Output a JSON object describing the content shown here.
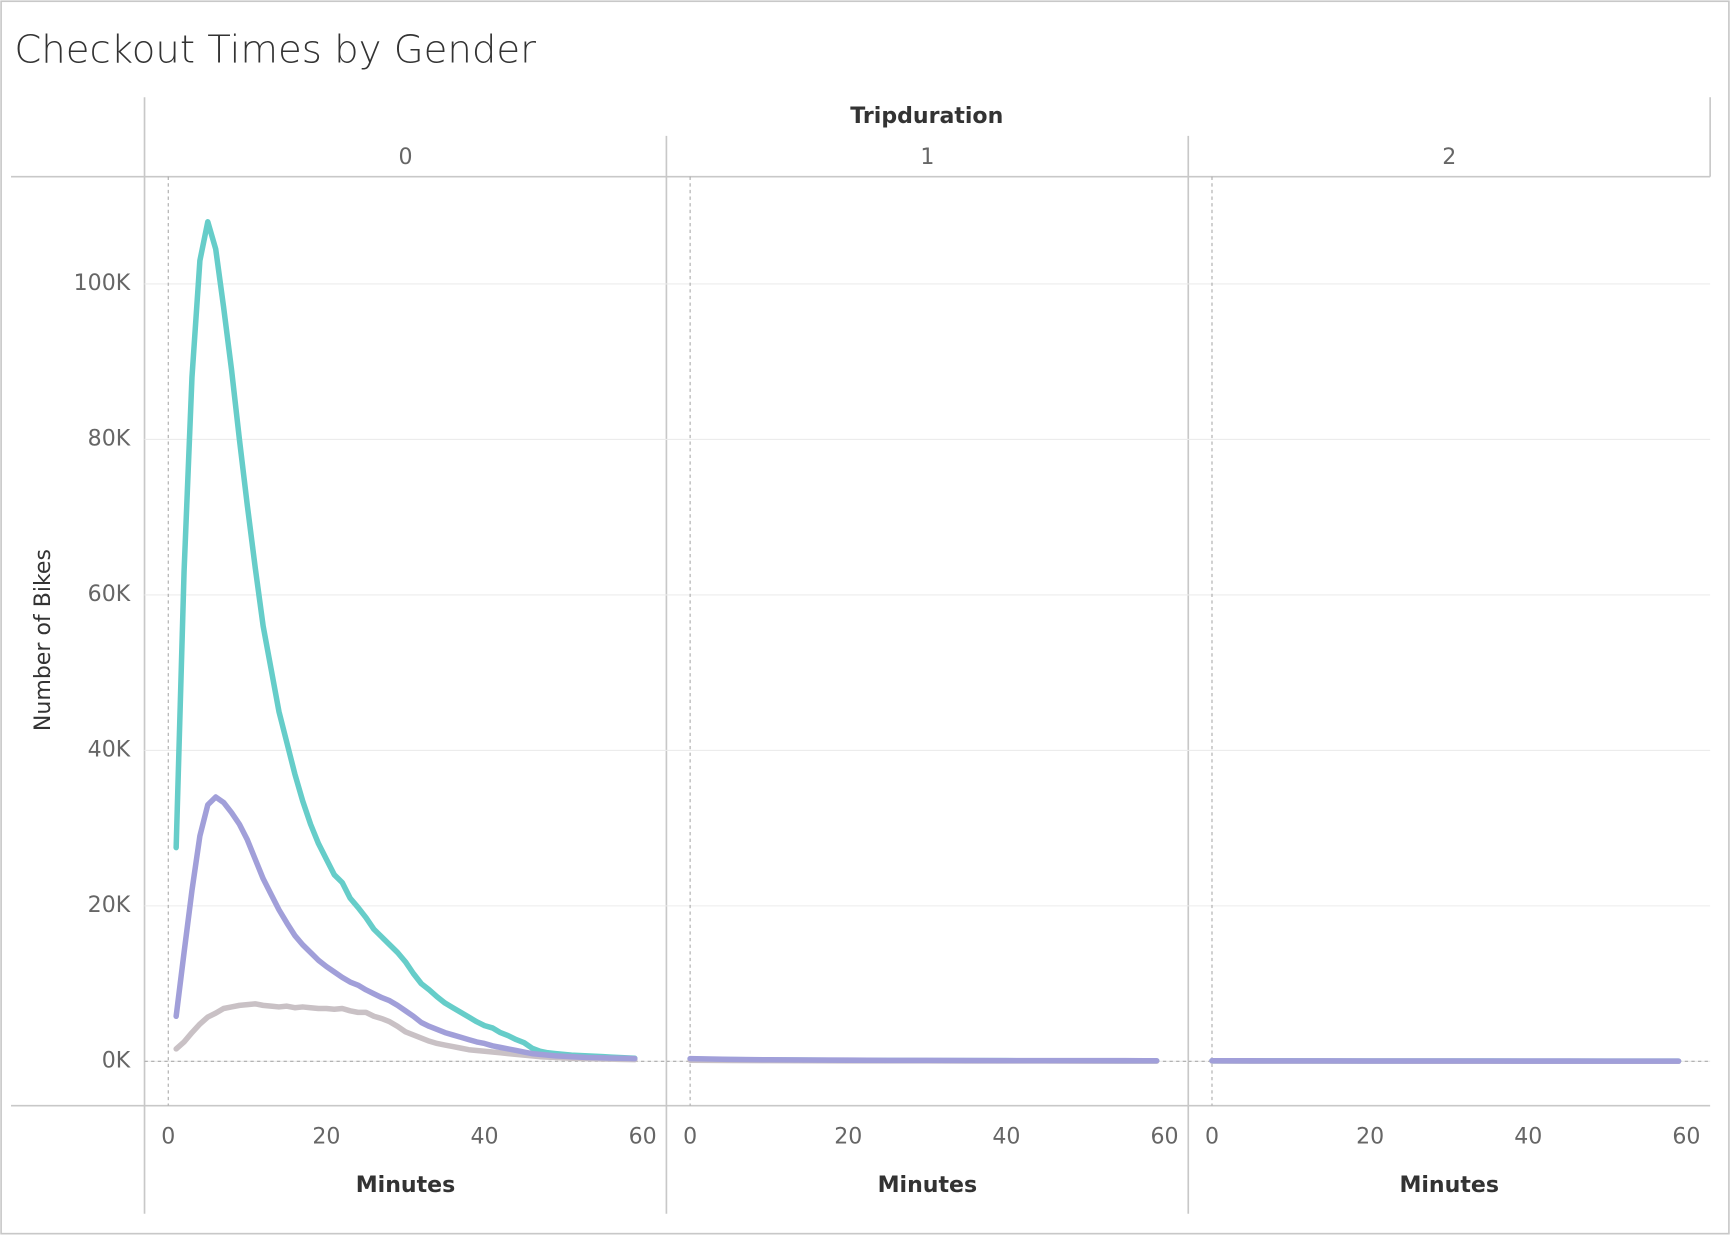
{
  "title": "Checkout Times by Gender",
  "column_header": "Tripduration",
  "chart_data": [
    {
      "type": "line",
      "header": "0",
      "x_label": "Minutes",
      "y_label": "Number of Bikes",
      "grid": true,
      "xlim": [
        -3,
        63
      ],
      "xticks": [
        0,
        20,
        40,
        60
      ],
      "ylim": [
        -5700,
        113800
      ],
      "yticks": [
        {
          "value": 0,
          "label": "0K"
        },
        {
          "value": 20000,
          "label": "20K"
        },
        {
          "value": 40000,
          "label": "40K"
        },
        {
          "value": 60000,
          "label": "60K"
        },
        {
          "value": 80000,
          "label": "80K"
        },
        {
          "value": 100000,
          "label": "100K"
        }
      ],
      "x": [
        1,
        2,
        3,
        4,
        5,
        6,
        7,
        8,
        9,
        10,
        11,
        12,
        13,
        14,
        15,
        16,
        17,
        18,
        19,
        20,
        21,
        22,
        23,
        24,
        25,
        26,
        27,
        28,
        29,
        30,
        31,
        32,
        33,
        34,
        35,
        36,
        37,
        38,
        39,
        40,
        41,
        42,
        43,
        44,
        45,
        46,
        47,
        48,
        49,
        50,
        51,
        52,
        53,
        54,
        55,
        56,
        57,
        58,
        59
      ],
      "series": [
        {
          "color": "#66cdc9",
          "values": [
            27500,
            63000,
            88000,
            103000,
            108000,
            104500,
            97000,
            89000,
            80000,
            71500,
            63500,
            56000,
            50500,
            45000,
            41000,
            37000,
            33500,
            30500,
            28000,
            26000,
            24000,
            23000,
            21000,
            19800,
            18500,
            17000,
            16000,
            15000,
            14000,
            12800,
            11300,
            10000,
            9200,
            8300,
            7500,
            6900,
            6300,
            5700,
            5100,
            4600,
            4300,
            3700,
            3300,
            2800,
            2400,
            1700,
            1300,
            1100,
            1000,
            900,
            800,
            750,
            700,
            650,
            600,
            550,
            500,
            450,
            400
          ]
        },
        {
          "color": "#c9c1c5",
          "values": [
            1600,
            2500,
            3700,
            4800,
            5700,
            6200,
            6800,
            7000,
            7200,
            7300,
            7400,
            7200,
            7100,
            7000,
            7100,
            6900,
            7000,
            6900,
            6800,
            6800,
            6700,
            6800,
            6500,
            6300,
            6300,
            5800,
            5500,
            5100,
            4500,
            3800,
            3400,
            3000,
            2600,
            2300,
            2100,
            1900,
            1700,
            1500,
            1400,
            1300,
            1200,
            1100,
            1000,
            900,
            800,
            700,
            600,
            550,
            500,
            450,
            400,
            380,
            350,
            330,
            300,
            280,
            260,
            240,
            220
          ]
        },
        {
          "color": "#a19fd9",
          "values": [
            5800,
            14000,
            22000,
            29000,
            33000,
            34000,
            33300,
            32000,
            30500,
            28500,
            26000,
            23500,
            21500,
            19500,
            17800,
            16200,
            15000,
            14000,
            13000,
            12200,
            11500,
            10800,
            10200,
            9800,
            9200,
            8700,
            8200,
            7800,
            7200,
            6500,
            5800,
            5000,
            4500,
            4100,
            3700,
            3400,
            3100,
            2800,
            2500,
            2300,
            2000,
            1800,
            1600,
            1400,
            1200,
            1000,
            900,
            800,
            700,
            650,
            600,
            550,
            500,
            480,
            450,
            420,
            400,
            380,
            350
          ]
        }
      ]
    },
    {
      "type": "line",
      "header": "1",
      "x_label": "Minutes",
      "grid": true,
      "xlim": [
        -3,
        63
      ],
      "xticks": [
        0,
        20,
        40,
        60
      ],
      "ylim": [
        -5700,
        113800
      ],
      "x": [
        0,
        5,
        10,
        15,
        20,
        25,
        30,
        35,
        40,
        45,
        50,
        55,
        59
      ],
      "series": [
        {
          "color": "#66cdc9",
          "values": [
            300,
            220,
            180,
            150,
            130,
            110,
            100,
            90,
            85,
            80,
            75,
            70,
            65
          ]
        },
        {
          "color": "#c9c1c5",
          "values": [
            150,
            110,
            90,
            80,
            70,
            60,
            55,
            50,
            45,
            40,
            38,
            35,
            30
          ]
        },
        {
          "color": "#a19fd9",
          "values": [
            350,
            250,
            200,
            170,
            150,
            130,
            120,
            110,
            100,
            95,
            90,
            85,
            80
          ]
        }
      ]
    },
    {
      "type": "line",
      "header": "2",
      "x_label": "Minutes",
      "grid": true,
      "xlim": [
        -3,
        63
      ],
      "xticks": [
        0,
        20,
        40,
        60
      ],
      "ylim": [
        -5700,
        113800
      ],
      "x": [
        0,
        5,
        10,
        15,
        20,
        25,
        30,
        35,
        40,
        45,
        50,
        55,
        59
      ],
      "series": [
        {
          "color": "#66cdc9",
          "values": [
            70,
            60,
            55,
            50,
            45,
            42,
            40,
            38,
            35,
            33,
            31,
            30,
            28
          ]
        },
        {
          "color": "#c9c1c5",
          "values": [
            40,
            35,
            30,
            28,
            25,
            23,
            22,
            20,
            19,
            18,
            17,
            16,
            15
          ]
        },
        {
          "color": "#a19fd9",
          "values": [
            80,
            70,
            62,
            56,
            50,
            47,
            44,
            41,
            38,
            36,
            34,
            32,
            30
          ]
        }
      ]
    }
  ]
}
